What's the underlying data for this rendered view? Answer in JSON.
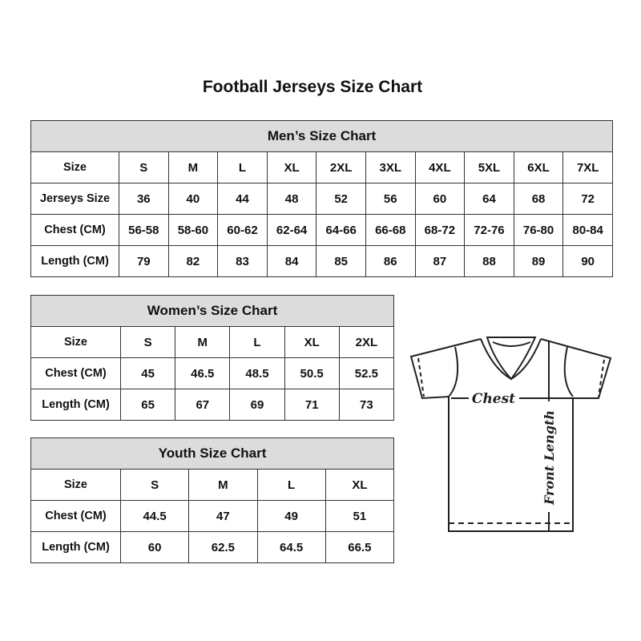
{
  "title": "Football Jerseys Size Chart",
  "men": {
    "title": "Men’s Size Chart",
    "rows": [
      [
        "Size",
        "S",
        "M",
        "L",
        "XL",
        "2XL",
        "3XL",
        "4XL",
        "5XL",
        "6XL",
        "7XL"
      ],
      [
        "Jerseys Size",
        "36",
        "40",
        "44",
        "48",
        "52",
        "56",
        "60",
        "64",
        "68",
        "72"
      ],
      [
        "Chest (CM)",
        "56-58",
        "58-60",
        "60-62",
        "62-64",
        "64-66",
        "66-68",
        "68-72",
        "72-76",
        "76-80",
        "80-84"
      ],
      [
        "Length (CM)",
        "79",
        "82",
        "83",
        "84",
        "85",
        "86",
        "87",
        "88",
        "89",
        "90"
      ]
    ]
  },
  "women": {
    "title": "Women’s Size Chart",
    "rows": [
      [
        "Size",
        "S",
        "M",
        "L",
        "XL",
        "2XL"
      ],
      [
        "Chest (CM)",
        "45",
        "46.5",
        "48.5",
        "50.5",
        "52.5"
      ],
      [
        "Length (CM)",
        "65",
        "67",
        "69",
        "71",
        "73"
      ]
    ]
  },
  "youth": {
    "title": "Youth Size Chart",
    "rows": [
      [
        "Size",
        "S",
        "M",
        "L",
        "XL"
      ],
      [
        "Chest (CM)",
        "44.5",
        "47",
        "49",
        "51"
      ],
      [
        "Length (CM)",
        "60",
        "62.5",
        "64.5",
        "66.5"
      ]
    ]
  },
  "diagram": {
    "chest_label": "Chest",
    "length_label": "Front Length"
  }
}
